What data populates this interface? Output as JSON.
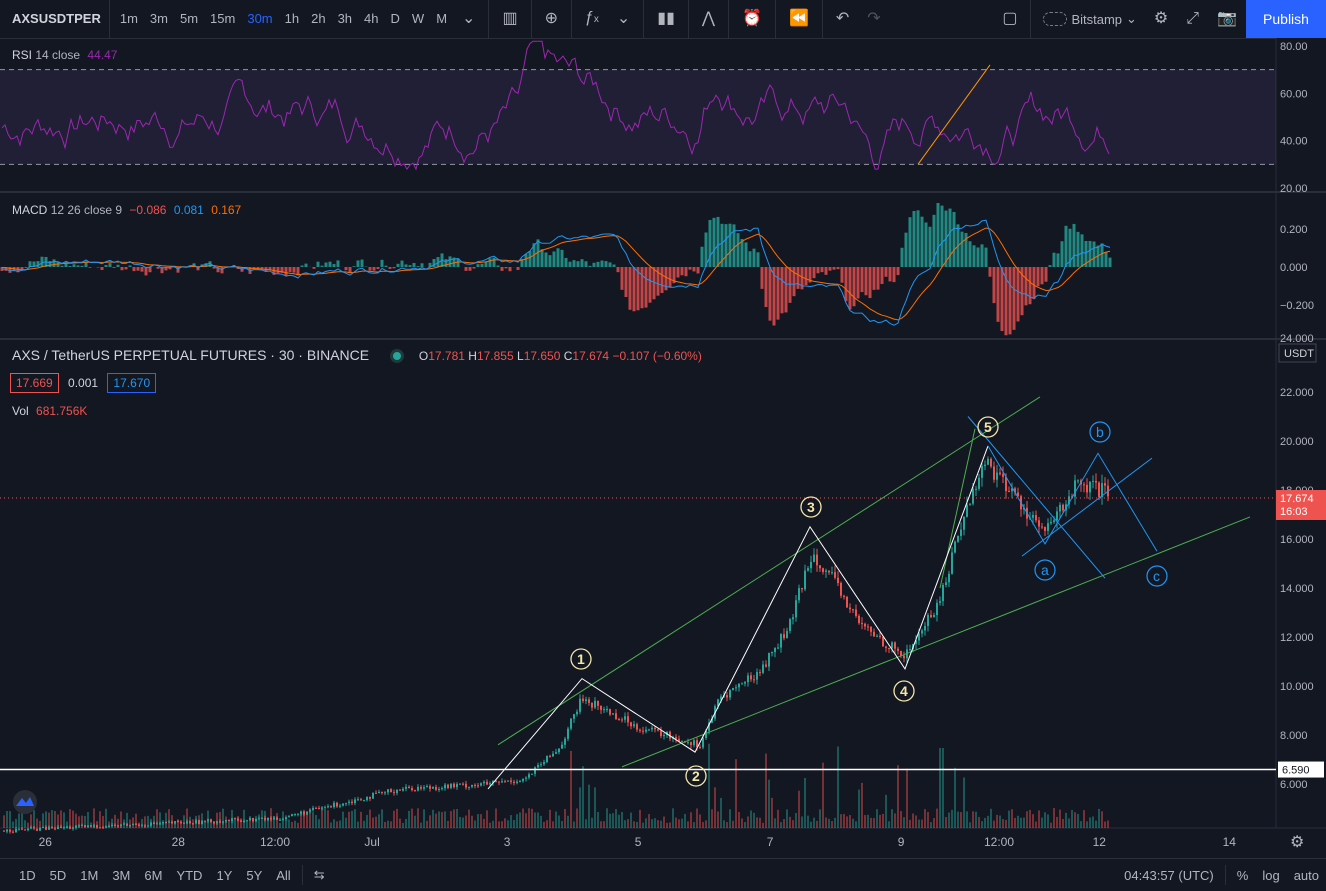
{
  "toolbar": {
    "symbol": "AXSUSDTPER",
    "intervals": [
      "1m",
      "3m",
      "5m",
      "15m",
      "30m",
      "1h",
      "2h",
      "3h",
      "4h",
      "D",
      "W",
      "M"
    ],
    "active_interval": "30m",
    "exchange": "Bitstamp",
    "publish_label": "Publish"
  },
  "rsi": {
    "name": "RSI",
    "params": "14 close",
    "value": "44.47",
    "axis": [
      "80.00",
      "60.00",
      "40.00",
      "20.00"
    ]
  },
  "macd": {
    "name": "MACD",
    "params": "12 26 close 9",
    "v1": "−0.086",
    "v2": "0.081",
    "v3": "0.167",
    "axis": [
      "0.200",
      "0.000",
      "−0.200"
    ]
  },
  "main": {
    "title": "AXS / TetherUS PERPETUAL FUTURES · 30 · BINANCE",
    "o_label": "O",
    "o": "17.781",
    "h_label": "H",
    "h": "17.855",
    "l_label": "L",
    "l": "17.650",
    "c_label": "C",
    "c": "17.674",
    "chg": "−0.107 (−0.60%)",
    "bid": "17.669",
    "spread": "0.001",
    "ask": "17.670",
    "vol_label": "Vol",
    "vol": "681.756K",
    "axis_top": "24.000",
    "currency": "USDT",
    "price_axis": [
      "22.000",
      "20.000",
      "18.000",
      "16.000",
      "14.000",
      "12.000",
      "10.000",
      "8.000",
      "6.000"
    ],
    "last_price": "17.674",
    "countdown": "16:03",
    "hline_price": "6.590",
    "wave_labels": [
      "1",
      "2",
      "3",
      "4",
      "5",
      "a",
      "b",
      "c"
    ]
  },
  "time_axis": [
    "26",
    "28",
    "12:00",
    "Jul",
    "3",
    "5",
    "7",
    "9",
    "12:00",
    "12",
    "14"
  ],
  "bottombar": {
    "ranges": [
      "1D",
      "5D",
      "1M",
      "3M",
      "6M",
      "YTD",
      "1Y",
      "5Y",
      "All"
    ],
    "clock": "04:43:57 (UTC)",
    "pct": "%",
    "log": "log",
    "auto": "auto"
  },
  "colors": {
    "up": "#26a69a",
    "down": "#ef5350",
    "rsi": "#9c27b0",
    "macd": "#2196f3",
    "signal": "#ff6d00",
    "wave": "#ffffff",
    "channel": "#4caf50",
    "corr": "#2196f3",
    "accent": "#2962ff"
  }
}
